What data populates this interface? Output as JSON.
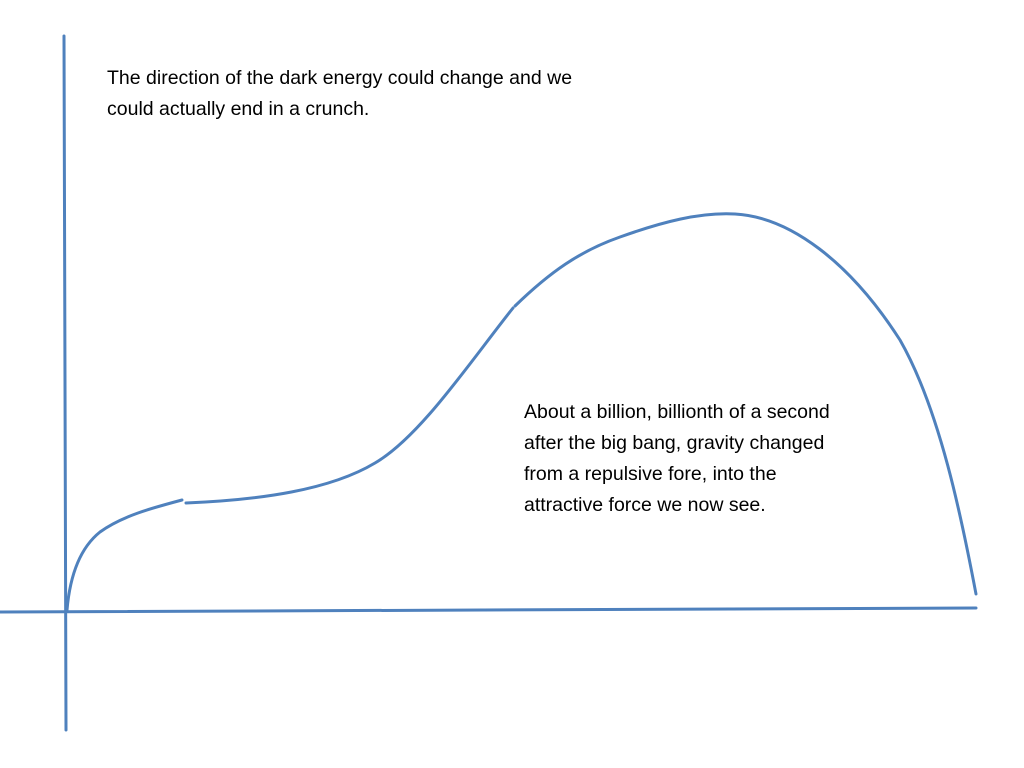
{
  "annotations": [
    {
      "lines": [
        "The direction of the dark energy could change and we",
        "could actually end in a crunch."
      ]
    },
    {
      "lines": [
        "About a billion, billionth of a second",
        "after the big bang, gravity changed",
        "from a repulsive fore, into the",
        "attractive force we now see."
      ]
    }
  ]
}
